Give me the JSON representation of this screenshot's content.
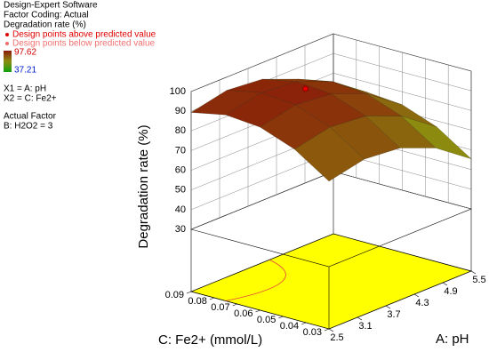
{
  "chart_data": {
    "type": "surface",
    "software": "Design-Expert Software",
    "coding": "Factor Coding: Actual",
    "response": "Degradation rate (%)",
    "point_legend": [
      {
        "label": "Design points above predicted value",
        "color": "#e00000"
      },
      {
        "label": "Design points below predicted value",
        "color": "#f07070"
      }
    ],
    "color_range": [
      37.21,
      97.62
    ],
    "colormap": [
      "#10a010",
      "#8c8c10",
      "#8a1a08"
    ],
    "factors": [
      "X1 = A: pH",
      "X2 = C: Fe2+"
    ],
    "actual_factor_title": "Actual Factor",
    "actual_factor": "B: H2O2 = 3",
    "xlabel": "A: pH",
    "ylabel": "C: Fe2+ (mmol/L)",
    "zlabel": "Degradation rate (%)",
    "xlim": [
      2.5,
      5.5
    ],
    "xticks": [
      2.5,
      3.1,
      3.7,
      4.3,
      4.9,
      5.5
    ],
    "ylim": [
      0.03,
      0.09
    ],
    "yticks": [
      0.03,
      0.04,
      0.05,
      0.06,
      0.07,
      0.08,
      0.09
    ],
    "zlim": [
      30,
      100
    ],
    "zticks": [
      30,
      40,
      50,
      60,
      70,
      80,
      90,
      100
    ],
    "grid": true,
    "x": [
      2.5,
      3.25,
      4,
      4.75,
      5.5
    ],
    "y": [
      0.03,
      0.045,
      0.06,
      0.075,
      0.09
    ],
    "z": [
      [
        73.4,
        84.9,
        91.4,
        92.9,
        89.4
      ],
      [
        77.3,
        88.8,
        95.3,
        96.8,
        93.3
      ],
      [
        75.6,
        87.1,
        93.6,
        95.1,
        91.6
      ],
      [
        68.3,
        79.8,
        86.3,
        87.8,
        84.3
      ],
      [
        55.4,
        66.9,
        73.4,
        74.9,
        71.4
      ]
    ],
    "design_points": [
      {
        "x": 3.7,
        "y": 0.065,
        "z": 97.62
      }
    ]
  }
}
